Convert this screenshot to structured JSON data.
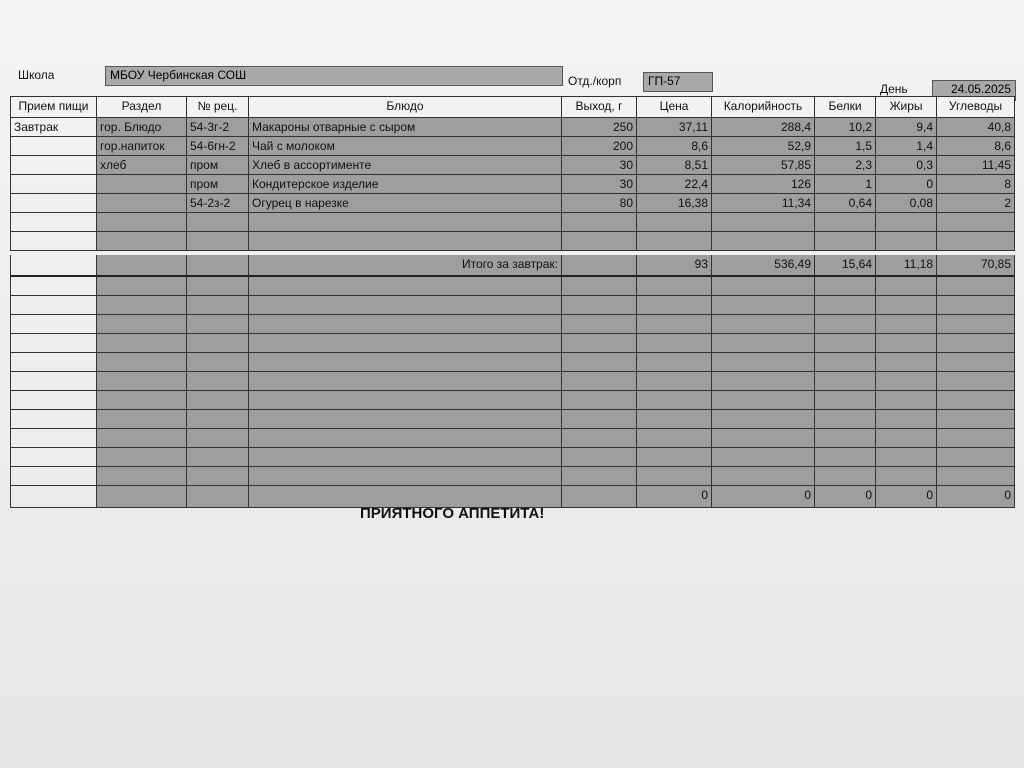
{
  "header": {
    "school_label": "Школа",
    "school": "МБОУ Чербинская СОШ",
    "dept_label": "Отд./корп",
    "dept": "ГП-57",
    "day_label": "День",
    "day": "24.05.2025"
  },
  "table": {
    "columns": [
      "Прием пищи",
      "Раздел",
      "№ рец.",
      "Блюдо",
      "Выход, г",
      "Цена",
      "Калорийность",
      "Белки",
      "Жиры",
      "Углеводы"
    ],
    "rows": [
      {
        "meal": "Завтрак",
        "section": "гор. Блюдо",
        "recipe": "54-3г-2",
        "dish": "Макароны отварные с сыром",
        "weight": "250",
        "price": "37,11",
        "kcal": "288,4",
        "protein": "10,2",
        "fat": "9,4",
        "carbs": "40,8"
      },
      {
        "section": "гор.напиток",
        "recipe": "54-6гн-2",
        "dish": "Чай с молоком",
        "weight": "200",
        "price": "8,6",
        "kcal": "52,9",
        "protein": "1,5",
        "fat": "1,4",
        "carbs": "8,6"
      },
      {
        "section": "хлеб",
        "recipe": "пром",
        "dish": "Хлеб в ассортименте",
        "weight": "30",
        "price": "8,51",
        "kcal": "57,85",
        "protein": "2,3",
        "fat": "0,3",
        "carbs": "11,45"
      },
      {
        "recipe": "пром",
        "dish": "Кондитерское изделие",
        "weight": "30",
        "price": "22,4",
        "kcal": "126",
        "protein": "1",
        "fat": "0",
        "carbs": "8"
      },
      {
        "recipe": "54-2з-2",
        "dish": "Огурец в нарезке",
        "weight": "80",
        "price": "16,38",
        "kcal": "11,34",
        "protein": "0,64",
        "fat": "0,08",
        "carbs": "2"
      }
    ],
    "total": {
      "dish": "Итого за завтрак:",
      "price": "93",
      "kcal": "536,49",
      "protein": "15,64",
      "fat": "11,18",
      "carbs": "70,85"
    },
    "final": {
      "price": "0",
      "kcal": "0",
      "protein": "0",
      "fat": "0",
      "carbs": "0"
    }
  },
  "footer": "ПРИЯТНОГО АППЕТИТА!"
}
